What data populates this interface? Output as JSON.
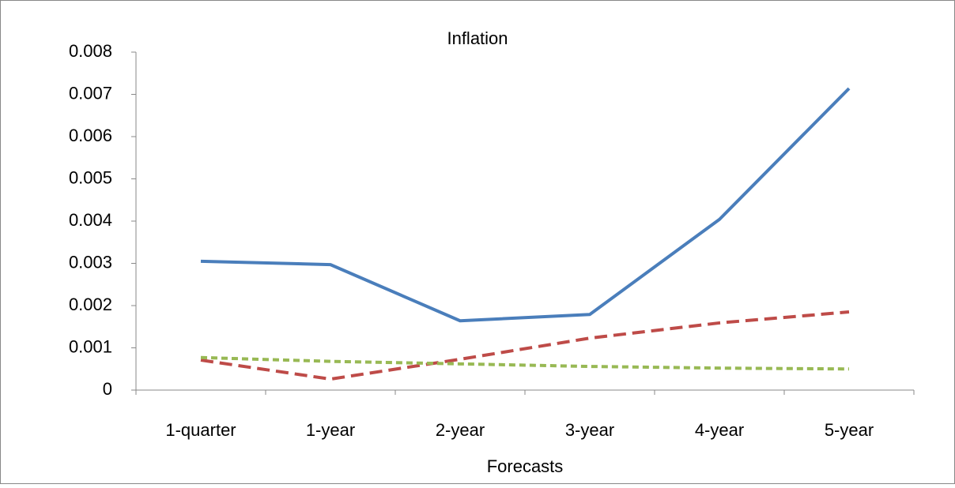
{
  "chart_data": {
    "type": "line",
    "title": "Inflation",
    "x_label": "Forecasts",
    "categories": [
      "1-quarter",
      "1-year",
      "2-year",
      "3-year",
      "4-year",
      "5-year"
    ],
    "series": [
      {
        "color": "#4a7ebb",
        "line_style": "solid",
        "values": [
          0.00305,
          0.00297,
          0.00164,
          0.00179,
          0.00404,
          0.00714
        ]
      },
      {
        "color": "#be4b48",
        "line_style": "dashed",
        "values": [
          0.00071,
          0.00026,
          0.00073,
          0.00123,
          0.00159,
          0.00185
        ]
      },
      {
        "color": "#98b954",
        "line_style": "dotted",
        "values": [
          0.00077,
          0.00068,
          0.00062,
          0.00056,
          0.00052,
          0.0005
        ]
      }
    ],
    "ylim": [
      0,
      0.008
    ],
    "yticks": [
      0,
      0.001,
      0.002,
      0.003,
      0.004,
      0.005,
      0.006,
      0.007,
      0.008
    ],
    "grid": false
  }
}
